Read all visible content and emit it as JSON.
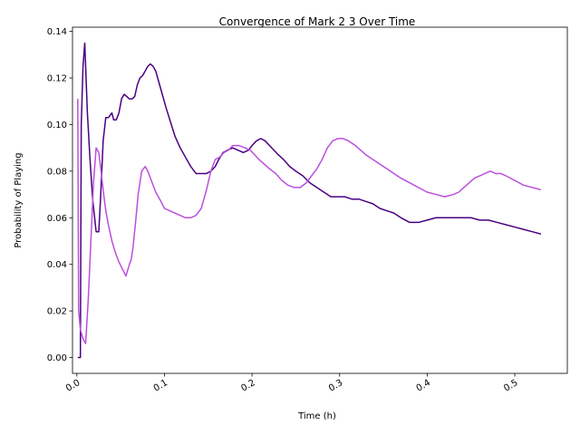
{
  "chart_data": {
    "type": "line",
    "title": "Convergence of Mark 2 3 Over Time",
    "xlabel": "Time (h)",
    "ylabel": "Probability of Playing",
    "xlim": [
      -0.005,
      0.56
    ],
    "ylim": [
      -0.0068,
      0.1418
    ],
    "xticks": [
      0.0,
      0.1,
      0.2,
      0.3,
      0.4,
      0.5
    ],
    "xtick_labels": [
      "0.0",
      "0.1",
      "0.2",
      "0.3",
      "0.4",
      "0.5"
    ],
    "yticks": [
      0.0,
      0.02,
      0.04,
      0.06,
      0.08,
      0.1,
      0.12,
      0.14
    ],
    "ytick_labels": [
      "0.00",
      "0.02",
      "0.04",
      "0.06",
      "0.08",
      "0.10",
      "0.12",
      "0.14"
    ],
    "grid": false,
    "series": [
      {
        "color": "#4b0082",
        "x": [
          0.001,
          0.004,
          0.005,
          0.007,
          0.009,
          0.01,
          0.012,
          0.015,
          0.018,
          0.022,
          0.025,
          0.027,
          0.03,
          0.033,
          0.036,
          0.04,
          0.042,
          0.045,
          0.048,
          0.051,
          0.054,
          0.057,
          0.06,
          0.063,
          0.066,
          0.069,
          0.072,
          0.075,
          0.078,
          0.081,
          0.084,
          0.087,
          0.09,
          0.093,
          0.096,
          0.099,
          0.102,
          0.107,
          0.112,
          0.118,
          0.124,
          0.13,
          0.136,
          0.142,
          0.148,
          0.153,
          0.158,
          0.162,
          0.167,
          0.172,
          0.178,
          0.184,
          0.19,
          0.196,
          0.2,
          0.205,
          0.21,
          0.215,
          0.22,
          0.225,
          0.23,
          0.236,
          0.243,
          0.25,
          0.258,
          0.266,
          0.274,
          0.282,
          0.29,
          0.298,
          0.306,
          0.314,
          0.322,
          0.33,
          0.338,
          0.346,
          0.354,
          0.362,
          0.37,
          0.38,
          0.39,
          0.4,
          0.41,
          0.42,
          0.43,
          0.44,
          0.45,
          0.46,
          0.47,
          0.48,
          0.49,
          0.5,
          0.51,
          0.52,
          0.53
        ],
        "values": [
          0.0,
          0.0,
          0.1,
          0.125,
          0.135,
          0.125,
          0.105,
          0.085,
          0.068,
          0.054,
          0.054,
          0.068,
          0.093,
          0.103,
          0.103,
          0.105,
          0.102,
          0.102,
          0.105,
          0.111,
          0.113,
          0.112,
          0.111,
          0.111,
          0.112,
          0.117,
          0.12,
          0.121,
          0.123,
          0.125,
          0.126,
          0.125,
          0.123,
          0.119,
          0.115,
          0.111,
          0.107,
          0.101,
          0.095,
          0.09,
          0.086,
          0.082,
          0.079,
          0.079,
          0.079,
          0.08,
          0.082,
          0.085,
          0.088,
          0.089,
          0.09,
          0.089,
          0.088,
          0.089,
          0.091,
          0.093,
          0.094,
          0.093,
          0.091,
          0.089,
          0.087,
          0.085,
          0.082,
          0.08,
          0.078,
          0.075,
          0.073,
          0.071,
          0.069,
          0.069,
          0.069,
          0.068,
          0.068,
          0.067,
          0.066,
          0.064,
          0.063,
          0.062,
          0.06,
          0.058,
          0.058,
          0.059,
          0.06,
          0.06,
          0.06,
          0.06,
          0.06,
          0.059,
          0.059,
          0.058,
          0.057,
          0.056,
          0.055,
          0.054,
          0.053
        ]
      },
      {
        "color": "#bb4fdd",
        "x": [
          0.001,
          0.002,
          0.004,
          0.007,
          0.01,
          0.013,
          0.016,
          0.019,
          0.022,
          0.025,
          0.027,
          0.03,
          0.033,
          0.036,
          0.04,
          0.044,
          0.048,
          0.052,
          0.056,
          0.06,
          0.062,
          0.064,
          0.067,
          0.07,
          0.074,
          0.078,
          0.081,
          0.084,
          0.087,
          0.09,
          0.093,
          0.096,
          0.1,
          0.106,
          0.112,
          0.118,
          0.124,
          0.13,
          0.136,
          0.142,
          0.148,
          0.153,
          0.158,
          0.163,
          0.168,
          0.173,
          0.178,
          0.185,
          0.192,
          0.198,
          0.203,
          0.208,
          0.214,
          0.22,
          0.227,
          0.234,
          0.241,
          0.248,
          0.255,
          0.262,
          0.268,
          0.274,
          0.28,
          0.286,
          0.292,
          0.298,
          0.304,
          0.31,
          0.314,
          0.318,
          0.324,
          0.33,
          0.338,
          0.346,
          0.354,
          0.362,
          0.37,
          0.38,
          0.39,
          0.4,
          0.41,
          0.42,
          0.43,
          0.436,
          0.442,
          0.448,
          0.454,
          0.46,
          0.466,
          0.472,
          0.478,
          0.484,
          0.49,
          0.5,
          0.51,
          0.52,
          0.53
        ],
        "values": [
          0.111,
          0.02,
          0.012,
          0.008,
          0.006,
          0.025,
          0.05,
          0.075,
          0.09,
          0.088,
          0.082,
          0.072,
          0.063,
          0.057,
          0.05,
          0.045,
          0.041,
          0.038,
          0.035,
          0.04,
          0.042,
          0.047,
          0.058,
          0.07,
          0.08,
          0.082,
          0.08,
          0.077,
          0.074,
          0.071,
          0.069,
          0.067,
          0.064,
          0.063,
          0.062,
          0.061,
          0.06,
          0.06,
          0.061,
          0.064,
          0.072,
          0.08,
          0.085,
          0.086,
          0.088,
          0.089,
          0.091,
          0.091,
          0.09,
          0.089,
          0.087,
          0.085,
          0.083,
          0.081,
          0.079,
          0.076,
          0.074,
          0.073,
          0.073,
          0.075,
          0.078,
          0.081,
          0.085,
          0.09,
          0.093,
          0.094,
          0.094,
          0.093,
          0.092,
          0.091,
          0.089,
          0.087,
          0.085,
          0.083,
          0.081,
          0.079,
          0.077,
          0.075,
          0.073,
          0.071,
          0.07,
          0.069,
          0.07,
          0.071,
          0.073,
          0.075,
          0.077,
          0.078,
          0.079,
          0.08,
          0.079,
          0.079,
          0.078,
          0.076,
          0.074,
          0.073,
          0.072
        ]
      }
    ]
  }
}
